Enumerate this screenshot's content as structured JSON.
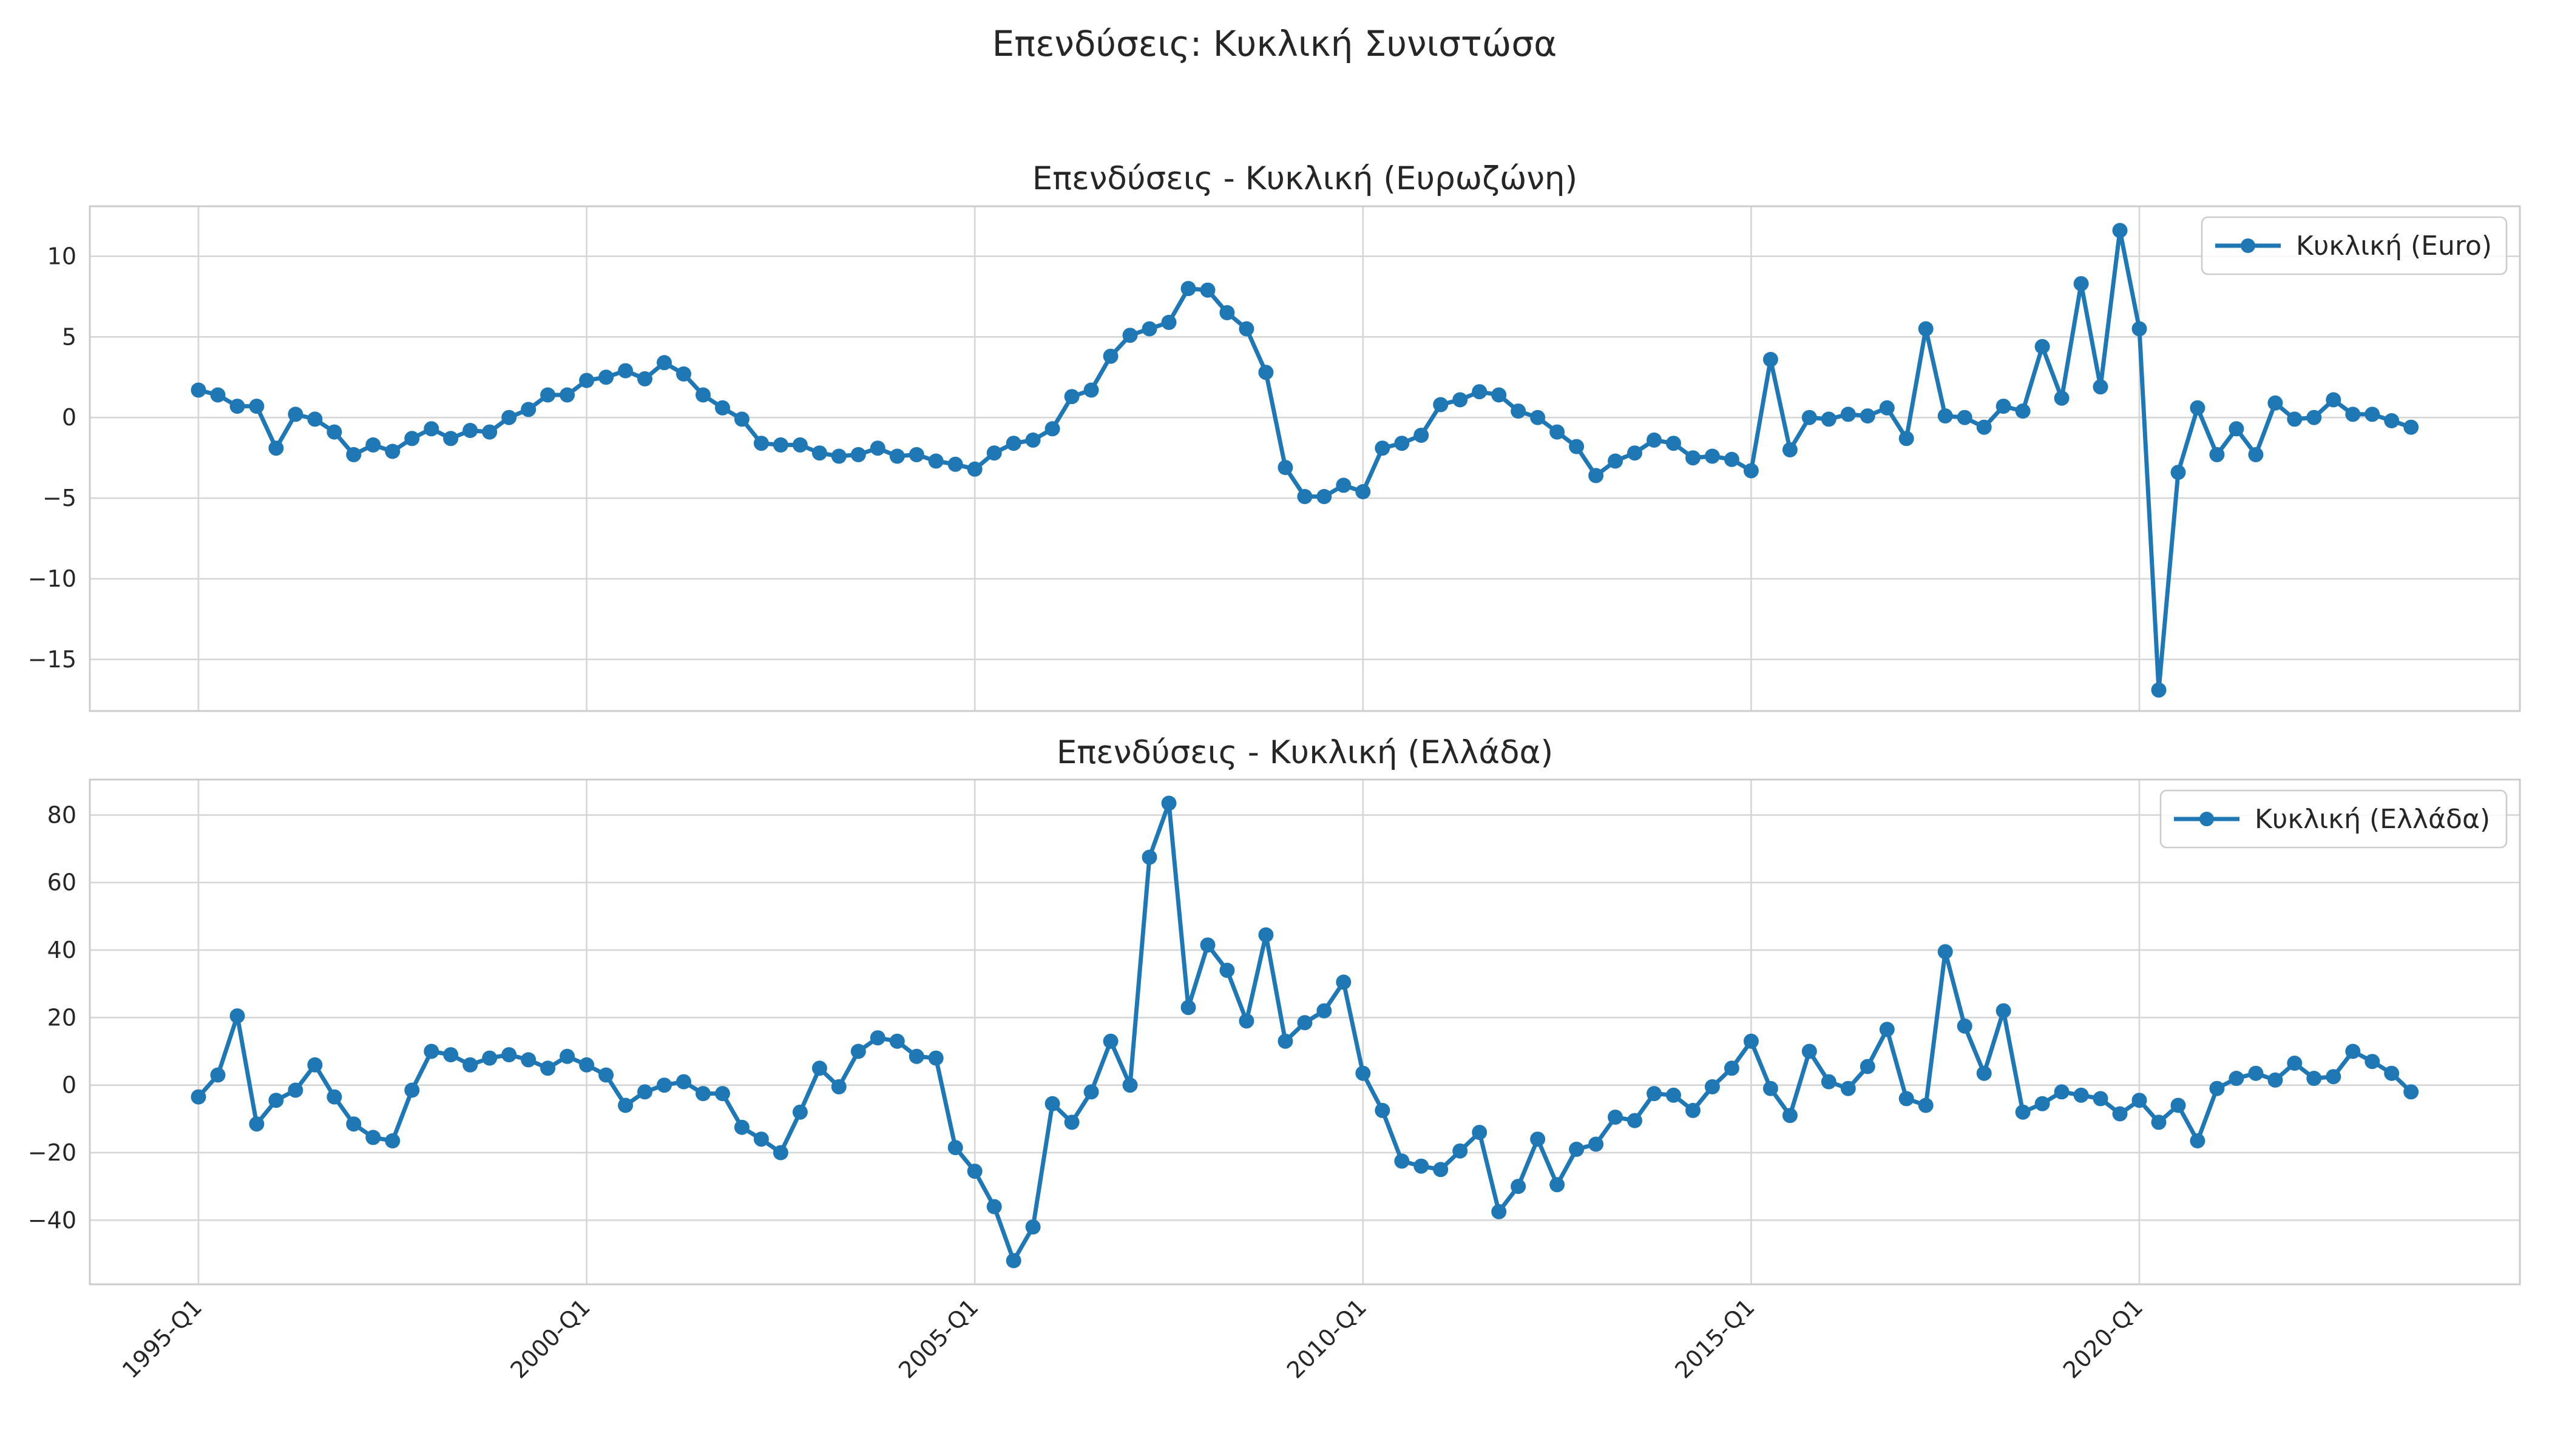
{
  "figure": {
    "suptitle": "Επενδύσεις: Κυκλική Συνιστώσα"
  },
  "chart_data": [
    {
      "type": "line",
      "title": "Επενδύσεις - Κυκλική (Ευρωζώνη)",
      "xlabel": "",
      "ylabel": "",
      "x_tick_labels": [
        "1995-Q1",
        "2000-Q1",
        "2005-Q1",
        "2010-Q1",
        "2015-Q1",
        "2020-Q1"
      ],
      "y_ticks": [
        10,
        5,
        0,
        -5,
        -10,
        -15
      ],
      "ylim": [
        -18.2,
        13.1
      ],
      "grid": true,
      "legend_position": "top-right",
      "color": "#1f77b4",
      "series": [
        {
          "name": "Κυκλική (Euro)",
          "x_start": "1995-Q1",
          "frequency": "quarterly",
          "values": [
            1.7,
            1.4,
            0.7,
            0.7,
            -1.9,
            0.2,
            -0.1,
            -0.9,
            -2.3,
            -1.7,
            -2.1,
            -1.3,
            -0.7,
            -1.3,
            -0.8,
            -0.9,
            0.0,
            0.5,
            1.4,
            1.4,
            2.3,
            2.5,
            2.9,
            2.4,
            3.4,
            2.7,
            1.4,
            0.6,
            -0.1,
            -1.6,
            -1.7,
            -1.7,
            -2.2,
            -2.4,
            -2.3,
            -1.9,
            -2.4,
            -2.3,
            -2.7,
            -2.9,
            -3.2,
            -2.2,
            -1.6,
            -1.4,
            -0.7,
            1.3,
            1.7,
            3.8,
            5.1,
            5.5,
            5.9,
            8.0,
            7.9,
            6.5,
            5.5,
            2.8,
            -3.1,
            -4.9,
            -4.9,
            -4.2,
            -4.6,
            -1.9,
            -1.6,
            -1.1,
            0.8,
            1.1,
            1.6,
            1.4,
            0.4,
            0.0,
            -0.9,
            -1.8,
            -3.6,
            -2.7,
            -2.2,
            -1.4,
            -1.6,
            -2.5,
            -2.4,
            -2.6,
            -3.3,
            3.6,
            -2.0,
            0.0,
            -0.1,
            0.2,
            0.1,
            0.6,
            -1.3,
            5.5,
            0.1,
            0.0,
            -0.6,
            0.7,
            0.4,
            4.4,
            1.2,
            8.3,
            1.9,
            11.6,
            5.5,
            -16.9,
            -3.4,
            0.6,
            -2.3,
            -0.7,
            -2.3,
            0.9,
            -0.1,
            0.0,
            1.1,
            0.2,
            0.2,
            -0.2,
            -0.6
          ]
        }
      ]
    },
    {
      "type": "line",
      "title": "Επενδύσεις - Κυκλική (Ελλάδα)",
      "xlabel": "",
      "ylabel": "",
      "x_tick_labels": [
        "1995-Q1",
        "2000-Q1",
        "2005-Q1",
        "2010-Q1",
        "2015-Q1",
        "2020-Q1"
      ],
      "y_ticks": [
        80,
        60,
        40,
        20,
        0,
        -20,
        -40
      ],
      "ylim": [
        -59,
        90.5
      ],
      "grid": true,
      "legend_position": "top-right",
      "color": "#1f77b4",
      "series": [
        {
          "name": "Κυκλική (Ελλάδα)",
          "x_start": "1995-Q1",
          "frequency": "quarterly",
          "values": [
            -3.5,
            3.0,
            20.5,
            -11.5,
            -4.5,
            -1.5,
            6.0,
            -3.5,
            -11.5,
            -15.5,
            -16.5,
            -1.5,
            10.0,
            9.0,
            6.0,
            8.0,
            9.0,
            7.5,
            5.0,
            8.5,
            6.0,
            3.0,
            -6.0,
            -2.0,
            0.0,
            1.0,
            -2.5,
            -2.5,
            -12.5,
            -16.0,
            -20.0,
            -8.0,
            5.0,
            -0.5,
            10.0,
            14.0,
            13.0,
            8.5,
            8.0,
            -18.5,
            -25.5,
            -36.0,
            -52.0,
            -42.0,
            -5.5,
            -11.0,
            -2.0,
            13.0,
            0.0,
            67.5,
            83.5,
            23.0,
            41.5,
            34.0,
            19.0,
            44.5,
            13.0,
            18.5,
            22.0,
            30.5,
            3.5,
            -7.5,
            -22.5,
            -24.0,
            -25.0,
            -19.5,
            -14.0,
            -37.5,
            -30.0,
            -16.0,
            -29.5,
            -19.0,
            -17.5,
            -9.5,
            -10.5,
            -2.5,
            -3.0,
            -7.5,
            -0.5,
            5.0,
            13.0,
            -1.0,
            -9.0,
            10.0,
            1.0,
            -1.0,
            5.5,
            16.5,
            -4.0,
            -6.0,
            39.5,
            17.5,
            3.5,
            22.0,
            -8.0,
            -5.5,
            -2.0,
            -3.0,
            -4.0,
            -8.5,
            -4.5,
            -11.0,
            -6.0,
            -16.5,
            -1.0,
            2.0,
            3.5,
            1.5,
            6.5,
            2.0,
            2.5,
            10.0,
            7.0,
            3.5,
            -2.0
          ]
        }
      ]
    }
  ]
}
